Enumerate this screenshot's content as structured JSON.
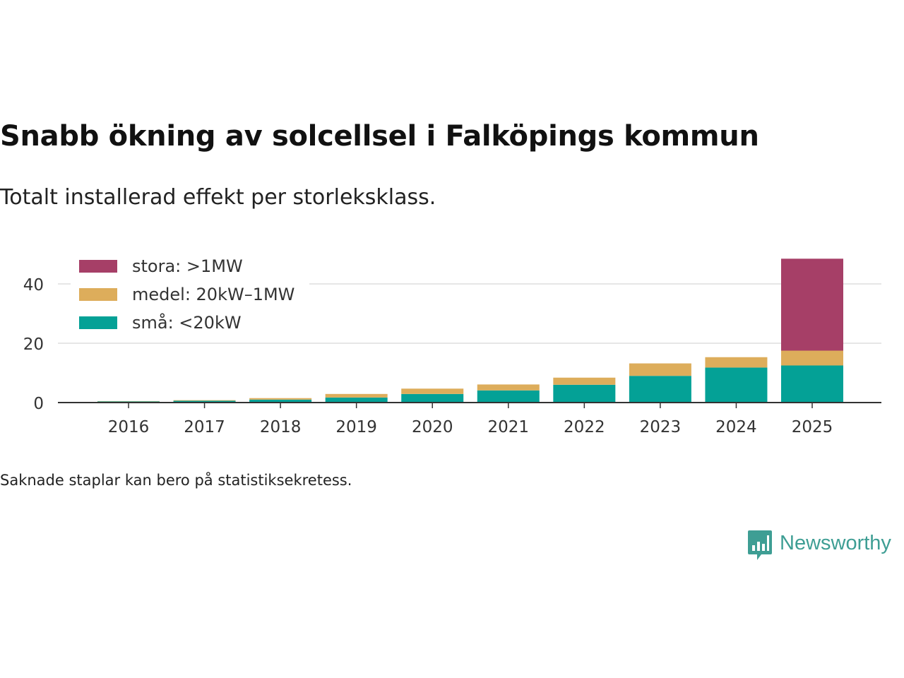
{
  "header": {
    "title": "Snabb ökning av solcellsel i Falköpings kommun",
    "subtitle": "Totalt installerad effekt per storleksklass."
  },
  "footer": {
    "note": "Saknade staplar kan bero på statistiksekretess.",
    "brand": "Newsworthy"
  },
  "colors": {
    "stora": "#a63f67",
    "medel": "#ddad5b",
    "sma": "#04a196",
    "grid": "#dddddd",
    "axis": "#333333",
    "brand": "#3e9e94"
  },
  "chart_data": {
    "type": "bar",
    "stacked": true,
    "categories": [
      "2016",
      "2017",
      "2018",
      "2019",
      "2020",
      "2021",
      "2022",
      "2023",
      "2024",
      "2025"
    ],
    "series": [
      {
        "name": "små: <20kW",
        "key": "sma",
        "values": [
          0.4,
          0.6,
          1.0,
          1.7,
          2.9,
          4.1,
          6.0,
          9.0,
          11.8,
          12.5
        ]
      },
      {
        "name": "medel: 20kW–1MW",
        "key": "medel",
        "values": [
          0.1,
          0.2,
          0.5,
          1.2,
          1.8,
          2.0,
          2.4,
          4.2,
          3.5,
          5.0
        ]
      },
      {
        "name": "stora: >1MW",
        "key": "stora",
        "values": [
          0,
          0,
          0,
          0,
          0,
          0,
          0,
          0,
          0,
          31.0
        ]
      }
    ],
    "legend_order": [
      "stora",
      "medel",
      "sma"
    ],
    "legend_position": "top-left",
    "yticks": [
      0,
      20,
      40
    ],
    "ylim": [
      0,
      50
    ],
    "xlabel": "",
    "ylabel": "",
    "grid": true
  }
}
